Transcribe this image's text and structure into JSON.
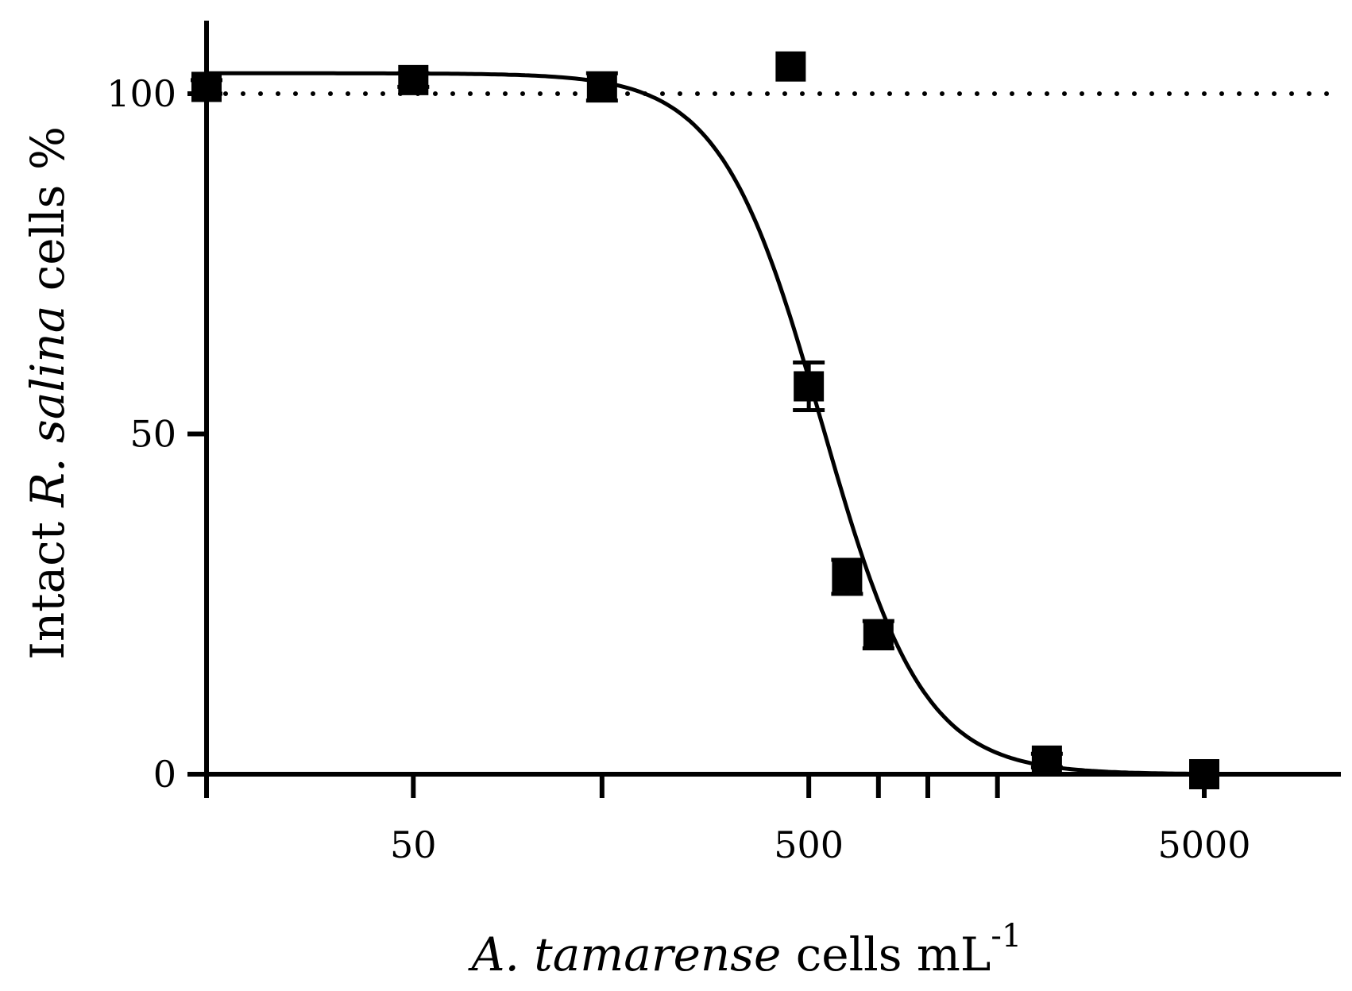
{
  "chart_data": {
    "type": "scatter",
    "x_scale": "log",
    "xlim": [
      15,
      9000
    ],
    "ylim": [
      0,
      110
    ],
    "x_ticks": [
      {
        "value": 15,
        "label": ""
      },
      {
        "value": 50,
        "label": "50"
      },
      {
        "value": 150,
        "label": ""
      },
      {
        "value": 500,
        "label": "500"
      },
      {
        "value": 1500,
        "label": ""
      },
      {
        "value": 5000,
        "label": "5000"
      }
    ],
    "x_minor_ticks": [
      750,
      1000
    ],
    "y_ticks": [
      {
        "value": 0,
        "label": "0"
      },
      {
        "value": 50,
        "label": "50"
      },
      {
        "value": 100,
        "label": "100"
      }
    ],
    "xlabel_parts": [
      {
        "text": "A. tamarense",
        "italic": true
      },
      {
        "text": " cells mL",
        "italic": false
      },
      {
        "text": "-1",
        "italic": false,
        "superscript": true
      }
    ],
    "ylabel_parts": [
      {
        "text": "Intact ",
        "italic": false
      },
      {
        "text": "R. salina",
        "italic": true
      },
      {
        "text": " cells %",
        "italic": false
      }
    ],
    "reference_line": {
      "y": 100,
      "style": "dotted"
    },
    "points": [
      {
        "x": 15,
        "y": 101,
        "err": 1
      },
      {
        "x": 50,
        "y": 102,
        "err": 1
      },
      {
        "x": 150,
        "y": 101,
        "err": 2
      },
      {
        "x": 450,
        "y": 104,
        "err": 0
      },
      {
        "x": 500,
        "y": 57,
        "err": 3.5
      },
      {
        "x": 625,
        "y": 29,
        "err": 2.5
      },
      {
        "x": 750,
        "y": 20.5,
        "err": 2
      },
      {
        "x": 2000,
        "y": 2,
        "err": 1
      },
      {
        "x": 5000,
        "y": 0,
        "err": 0
      }
    ],
    "fit_curve": {
      "top": 103,
      "bottom": 0,
      "ec50": 540,
      "hill": 3.4
    },
    "grid": false,
    "legend": "none"
  }
}
